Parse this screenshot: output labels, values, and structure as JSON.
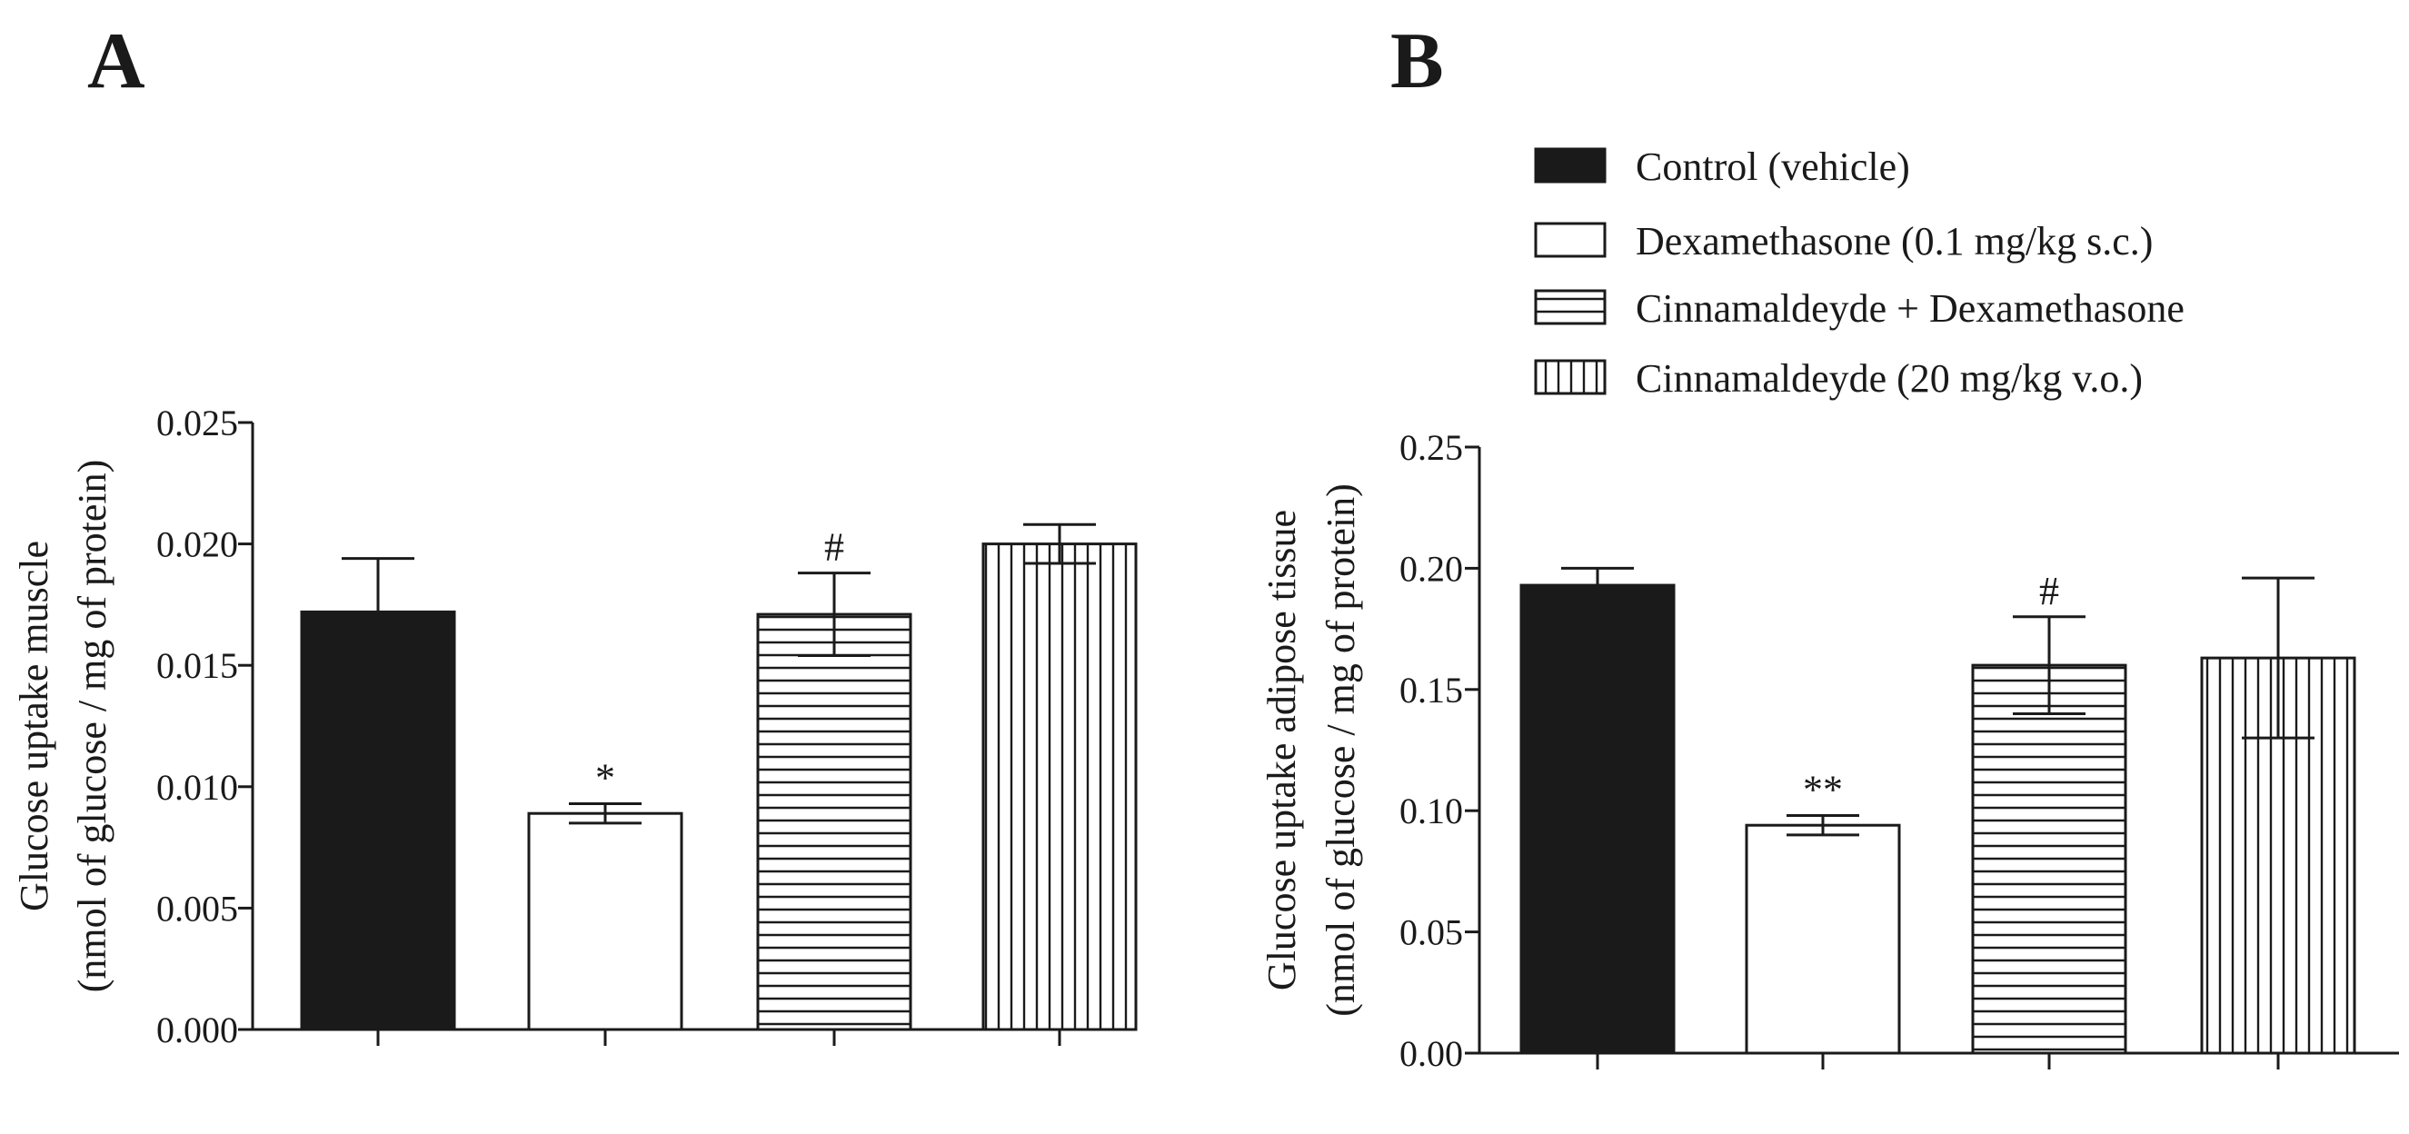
{
  "legend": [
    {
      "label": "Control (vehicle)",
      "fill": "solid"
    },
    {
      "label": "Dexamethasone (0.1 mg/kg s.c.)",
      "fill": "empty"
    },
    {
      "label": "Cinnamaldeyde + Dexamethasone",
      "fill": "hlines"
    },
    {
      "label": "Cinnamaldeyde (20 mg/kg v.o.)",
      "fill": "vlines"
    }
  ],
  "colors": {
    "ink": "#1a1a1a",
    "background": "#ffffff"
  },
  "chart_data": [
    {
      "panel": "A",
      "type": "bar",
      "categories": [
        "Control (vehicle)",
        "Dexamethasone (0.1 mg/kg s.c.)",
        "Cinnamaldeyde + Dexamethasone",
        "Cinnamaldeyde (20 mg/kg v.o.)"
      ],
      "values": [
        0.0172,
        0.0089,
        0.0171,
        0.02
      ],
      "errors": [
        0.0022,
        0.0004,
        0.0017,
        0.0008
      ],
      "annotations": [
        "",
        "*",
        "#",
        ""
      ],
      "ylabel_line1": "Glucose uptake muscle",
      "ylabel_line2": "(nmol of glucose / mg of protein)",
      "ylim": [
        0,
        0.025
      ],
      "yticks": [
        "0.000",
        "0.005",
        "0.010",
        "0.015",
        "0.020",
        "0.025"
      ],
      "ytick_values": [
        0,
        0.005,
        0.01,
        0.015,
        0.02,
        0.025
      ]
    },
    {
      "panel": "B",
      "type": "bar",
      "categories": [
        "Control (vehicle)",
        "Dexamethasone (0.1 mg/kg s.c.)",
        "Cinnamaldeyde + Dexamethasone",
        "Cinnamaldeyde (20 mg/kg v.o.)"
      ],
      "values": [
        0.193,
        0.094,
        0.16,
        0.163
      ],
      "errors": [
        0.007,
        0.004,
        0.02,
        0.033
      ],
      "annotations": [
        "",
        "**",
        "#",
        ""
      ],
      "ylabel_line1": "Glucose uptake adipose tissue",
      "ylabel_line2": "(nmol of glucose / mg of protein)",
      "ylim": [
        0,
        0.25
      ],
      "yticks": [
        "0.00",
        "0.05",
        "0.10",
        "0.15",
        "0.20",
        "0.25"
      ],
      "ytick_values": [
        0,
        0.05,
        0.1,
        0.15,
        0.2,
        0.25
      ]
    }
  ]
}
